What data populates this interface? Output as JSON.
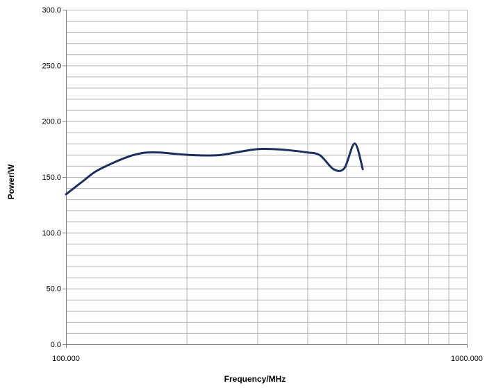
{
  "chart_data": {
    "type": "line",
    "title": "",
    "xlabel": "Frequency/MHz",
    "ylabel": "Power/W",
    "x_scale": "log",
    "xlim": [
      100,
      1000
    ],
    "ylim": [
      0,
      300
    ],
    "grid": true,
    "legend": "none",
    "x_ticks": [
      100,
      1000
    ],
    "x_tick_labels": [
      "100.000",
      "1000.000"
    ],
    "y_ticks": [
      0,
      50,
      100,
      150,
      200,
      250,
      300
    ],
    "y_tick_labels": [
      "0.0",
      "50.0",
      "100.0",
      "150.0",
      "200.0",
      "250.0",
      "300.0"
    ],
    "y_minor_step": 10,
    "series": [
      {
        "name": "",
        "color": "#1c2f5e",
        "x": [
          100,
          110,
          120,
          140,
          155,
          170,
          190,
          210,
          240,
          270,
          300,
          330,
          360,
          400,
          430,
          465,
          495,
          525,
          550
        ],
        "y": [
          134.5,
          146,
          156,
          167,
          171.5,
          172,
          170.5,
          169.5,
          169.5,
          172.5,
          175,
          175,
          174,
          172,
          169.5,
          157,
          158,
          180,
          157
        ]
      }
    ]
  }
}
